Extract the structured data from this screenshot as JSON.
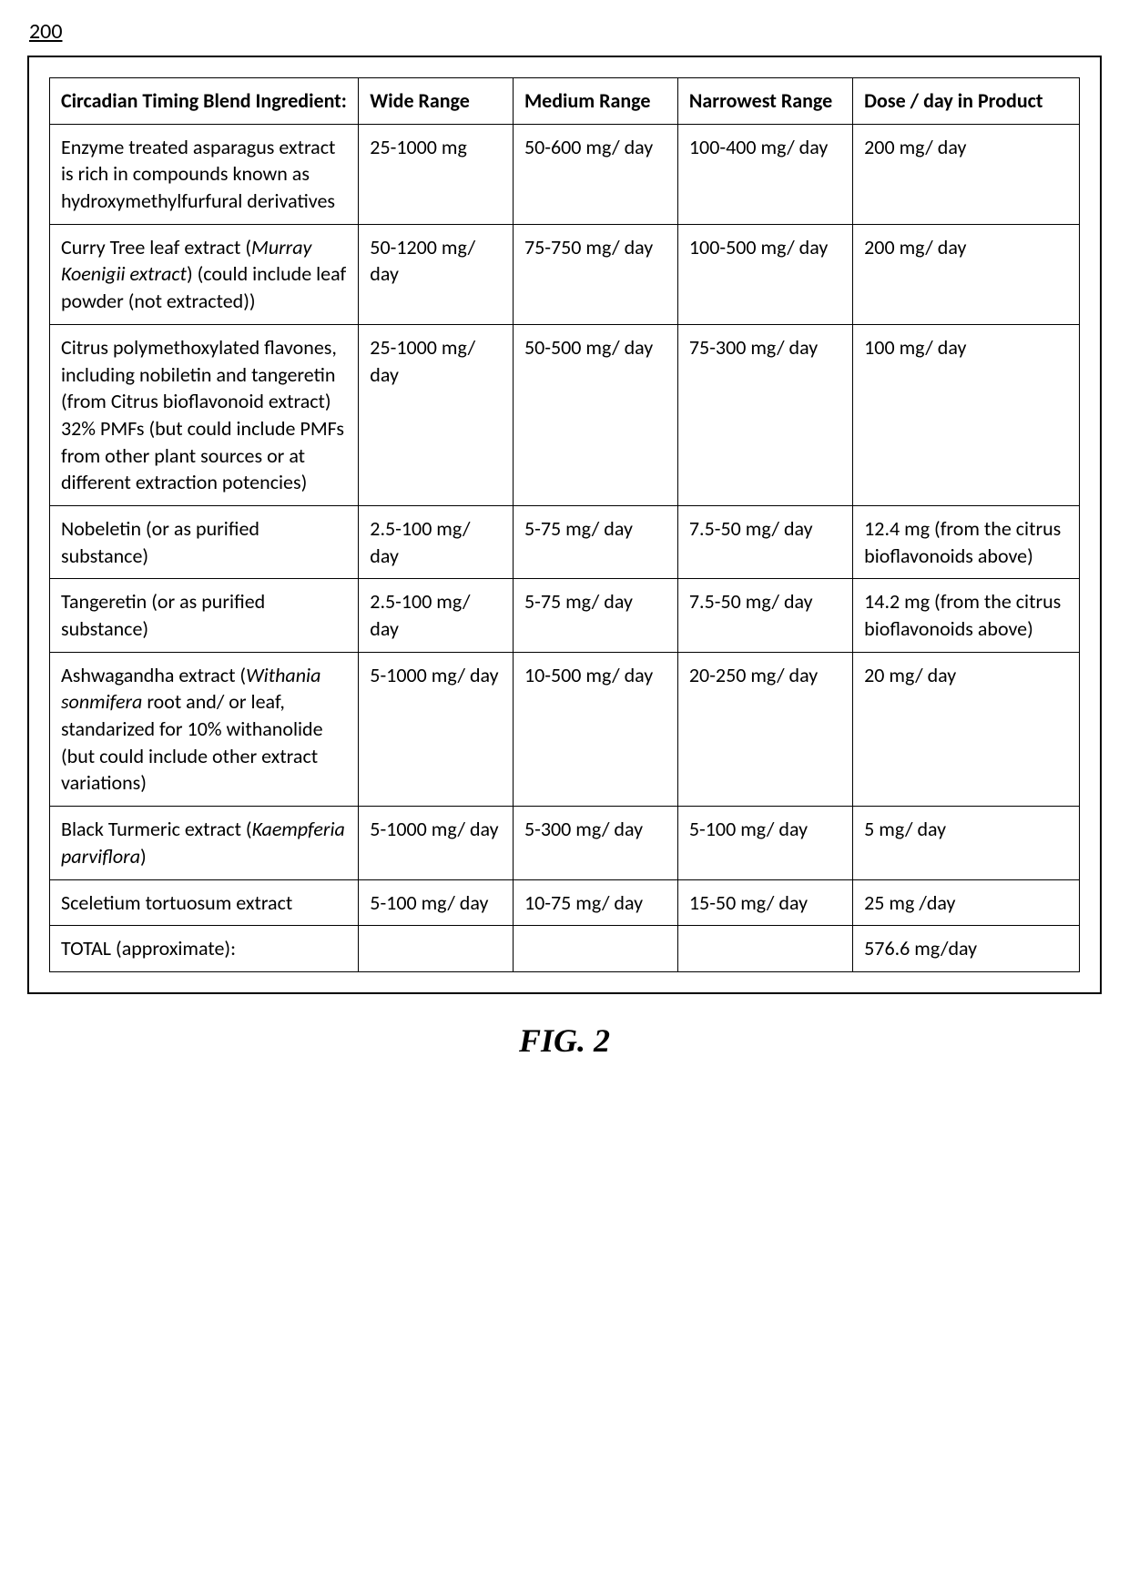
{
  "figure_number": "200",
  "caption": "FIG. 2",
  "headers": {
    "ingredient": "Circadian Timing Blend Ingredient:",
    "wide": "Wide Range",
    "medium": "Medium Range",
    "narrow": "Narrowest Range",
    "dose": "Dose / day in Product"
  },
  "rows": [
    {
      "ingredient_plain": "Enzyme treated asparagus extract is rich in compounds known as hydroxymethylfurfural derivatives",
      "wide": "25-1000 mg",
      "medium": "50-600 mg/ day",
      "narrow": "100-400 mg/ day",
      "dose": "200 mg/ day"
    },
    {
      "ingredient_pre": "Curry Tree leaf extract (",
      "ingredient_italic": "Murray Koenigii extract",
      "ingredient_post": ") (could include leaf powder (not extracted))",
      "wide": "50-1200 mg/ day",
      "medium": "75-750 mg/ day",
      "narrow": "100-500 mg/ day",
      "dose": "200 mg/ day"
    },
    {
      "ingredient_plain": "Citrus polymethoxylated flavones, including nobiletin and tangeretin (from Citrus bioflavonoid extract)  32% PMFs (but could include PMFs from other plant sources or at different extraction potencies)",
      "wide": "25-1000 mg/ day",
      "medium": "50-500 mg/ day",
      "narrow": "75-300 mg/ day",
      "dose": "100 mg/ day"
    },
    {
      "ingredient_plain": "Nobeletin (or as purified substance)",
      "wide": "2.5-100 mg/ day",
      "medium": "5-75 mg/ day",
      "narrow": "7.5-50 mg/ day",
      "dose": "12.4 mg (from the citrus bioflavonoids above)"
    },
    {
      "ingredient_plain": "Tangeretin (or as purified substance)",
      "wide": "2.5-100 mg/ day",
      "medium": "5-75 mg/ day",
      "narrow": "7.5-50 mg/ day",
      "dose": "14.2 mg (from the citrus bioflavonoids above)"
    },
    {
      "ingredient_pre": "Ashwagandha extract (",
      "ingredient_italic": "Withania sonmifera",
      "ingredient_post": " root and/ or leaf, standarized for 10% withanolide (but could include other extract variations)",
      "wide": "5-1000 mg/ day",
      "medium": "10-500 mg/ day",
      "narrow": "20-250 mg/ day",
      "dose": "20 mg/ day"
    },
    {
      "ingredient_pre": "Black Turmeric extract (",
      "ingredient_italic": "Kaempferia parviflora",
      "ingredient_post": ")",
      "wide": "5-1000 mg/ day",
      "medium": "5-300 mg/ day",
      "narrow": "5-100 mg/ day",
      "dose": "5 mg/ day"
    },
    {
      "ingredient_plain": "Sceletium tortuosum extract",
      "wide": "5-100 mg/ day",
      "medium": "10-75 mg/ day",
      "narrow": "15-50 mg/ day",
      "dose": "25 mg /day"
    },
    {
      "ingredient_plain": "TOTAL (approximate):",
      "wide": "",
      "medium": "",
      "narrow": "",
      "dose": "576.6 mg/day"
    }
  ]
}
